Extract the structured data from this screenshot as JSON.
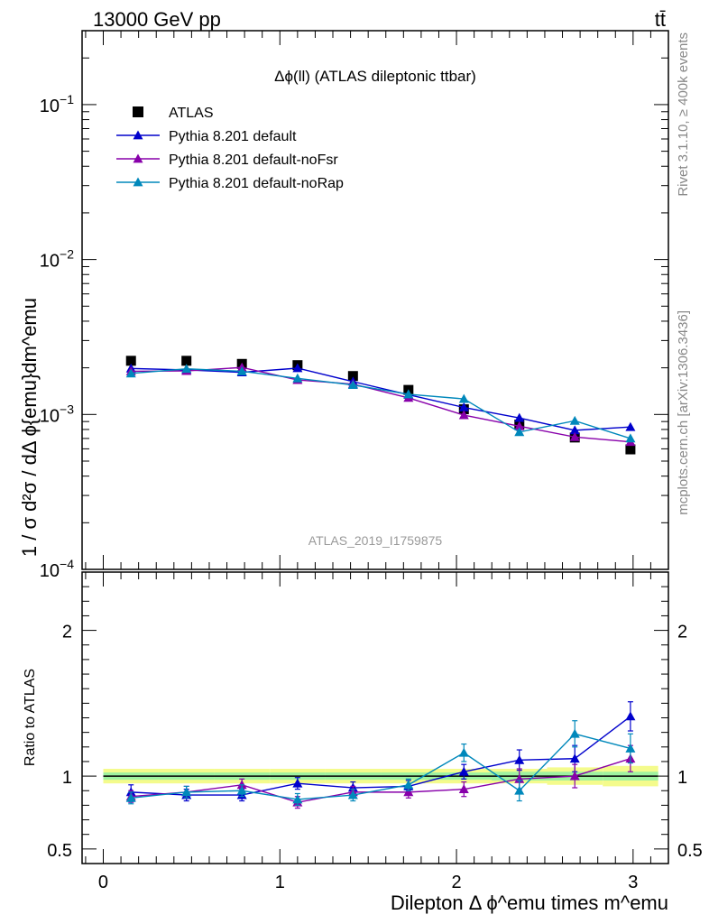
{
  "header": {
    "left": "13000 GeV pp",
    "right": "tt̄"
  },
  "side_labels": {
    "top": "Rivet 3.1.10, ≥ 400k events",
    "bottom": "mcplots.cern.ch [arXiv:1306.3436]"
  },
  "chart_data": {
    "type": "scatter",
    "title": "Δϕ(ll) (ATLAS dileptonic ttbar)",
    "analysis_label": "ATLAS_2019_I1759875",
    "xlabel": "Dilepton Δ ϕ^emu times m^emu",
    "ylabel": "1 / σ  d²σ / dΔ ϕ{emu}dm^emu",
    "ratio_ylabel": "Ratio to ATLAS",
    "xlim": [
      -0.12,
      3.2
    ],
    "ylim": [
      0.0001,
      0.3
    ],
    "yscale": "log",
    "ratio_ylim": [
      0.4,
      2.4
    ],
    "x_ticks": [
      "0",
      "1",
      "2",
      "3"
    ],
    "y_ticks": [
      "10^-4",
      "10^-3",
      "10^-2",
      "10^-1"
    ],
    "ratio_ticks": [
      "0.5",
      "1",
      "2"
    ],
    "legend_position": "top-left",
    "x": [
      0.157,
      0.471,
      0.785,
      1.1,
      1.414,
      1.728,
      2.042,
      2.356,
      2.67,
      2.985
    ],
    "data": {
      "name": "ATLAS",
      "color": "#000000",
      "values": [
        0.00222,
        0.00222,
        0.00212,
        0.00208,
        0.00177,
        0.00144,
        0.00108,
        0.00086,
        0.00071,
        0.000595
      ],
      "band_inner": [
        0.025,
        0.025,
        0.025,
        0.025,
        0.025,
        0.025,
        0.025,
        0.03,
        0.03,
        0.03
      ],
      "band_outer": [
        0.05,
        0.05,
        0.05,
        0.05,
        0.05,
        0.05,
        0.05,
        0.05,
        0.06,
        0.07
      ]
    },
    "series": [
      {
        "name": "Pythia 8.201 default",
        "color": "#0000cc",
        "values": [
          0.00198,
          0.00194,
          0.00187,
          0.00199,
          0.00163,
          0.00134,
          0.00111,
          0.00095,
          0.00079,
          0.00083
        ],
        "ratio": [
          0.89,
          0.87,
          0.87,
          0.95,
          0.92,
          0.93,
          1.03,
          1.11,
          1.12,
          1.41
        ],
        "ratio_err": [
          0.05,
          0.04,
          0.04,
          0.04,
          0.04,
          0.04,
          0.05,
          0.07,
          0.09,
          0.1
        ]
      },
      {
        "name": "Pythia 8.201 default-noFsr",
        "color": "#8800aa",
        "values": [
          0.0019,
          0.00191,
          0.00201,
          0.00167,
          0.00157,
          0.00128,
          0.00099,
          0.00084,
          0.000715,
          0.000665
        ],
        "ratio": [
          0.86,
          0.89,
          0.94,
          0.82,
          0.89,
          0.89,
          0.91,
          0.98,
          1.0,
          1.12
        ],
        "ratio_err": [
          0.04,
          0.04,
          0.04,
          0.04,
          0.04,
          0.04,
          0.05,
          0.07,
          0.08,
          0.09
        ]
      },
      {
        "name": "Pythia 8.201 default-noRap",
        "color": "#0088bb",
        "values": [
          0.00184,
          0.00197,
          0.0019,
          0.00171,
          0.00155,
          0.00135,
          0.00126,
          0.00077,
          0.00091,
          0.0007
        ],
        "ratio": [
          0.85,
          0.89,
          0.9,
          0.84,
          0.87,
          0.94,
          1.16,
          0.9,
          1.29,
          1.19
        ],
        "ratio_err": [
          0.04,
          0.04,
          0.04,
          0.04,
          0.04,
          0.04,
          0.06,
          0.07,
          0.09,
          0.1
        ]
      }
    ]
  }
}
